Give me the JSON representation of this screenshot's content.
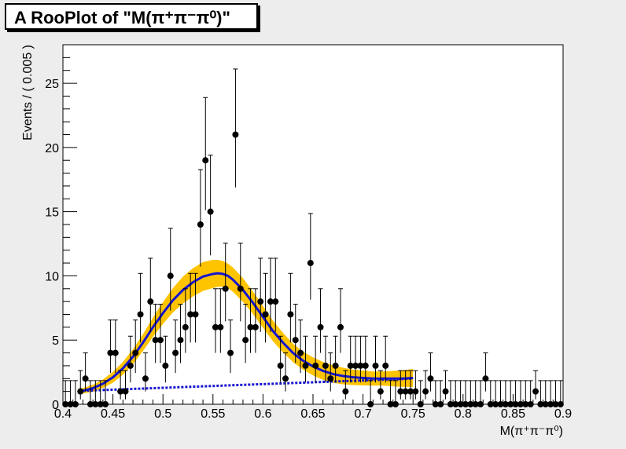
{
  "title": "A RooPlot of \"M(π⁺π⁻π⁰)\"",
  "chart_data": {
    "type": "scatter",
    "title": "A RooPlot of \"M(π⁺π⁻π⁰)\"",
    "xlabel": "M(π⁺π⁻π⁰)",
    "ylabel": "Events / ( 0.005 )",
    "xlim": [
      0.4,
      0.9
    ],
    "ylim": [
      0,
      28
    ],
    "x_ticks": [
      0.4,
      0.45,
      0.5,
      0.55,
      0.6,
      0.65,
      0.7,
      0.75,
      0.8,
      0.85,
      0.9
    ],
    "x_tick_labels": [
      "0.4",
      "0.45",
      "0.5",
      "0.55",
      "0.6",
      "0.65",
      "0.7",
      "0.75",
      "0.8",
      "0.85",
      "0.9"
    ],
    "y_ticks": [
      0,
      5,
      10,
      15,
      20,
      25
    ],
    "y_tick_labels": [
      "0",
      "5",
      "10",
      "15",
      "20",
      "25"
    ],
    "grid": false,
    "colors": {
      "data": "#000000",
      "fit": "#1515d0",
      "band": "#ffc400",
      "frame": "#000000"
    },
    "series": [
      {
        "kind": "data-points-with-poisson-errors",
        "x": [
          0.4025,
          0.4075,
          0.4125,
          0.4175,
          0.4225,
          0.4275,
          0.4325,
          0.4375,
          0.4425,
          0.4475,
          0.4525,
          0.4575,
          0.4625,
          0.4675,
          0.4725,
          0.4775,
          0.4825,
          0.4875,
          0.4925,
          0.4975,
          0.5025,
          0.5075,
          0.5125,
          0.5175,
          0.5225,
          0.5275,
          0.5325,
          0.5375,
          0.5425,
          0.5475,
          0.5525,
          0.5575,
          0.5625,
          0.5675,
          0.5725,
          0.5775,
          0.5825,
          0.5875,
          0.5925,
          0.5975,
          0.6025,
          0.6075,
          0.6125,
          0.6175,
          0.6225,
          0.6275,
          0.6325,
          0.6375,
          0.6425,
          0.6475,
          0.6525,
          0.6575,
          0.6625,
          0.6675,
          0.6725,
          0.6775,
          0.6825,
          0.6875,
          0.6925,
          0.6975,
          0.7025,
          0.7075,
          0.7125,
          0.7175,
          0.7225,
          0.7275,
          0.7325,
          0.7375,
          0.7425,
          0.7475,
          0.7525,
          0.7575,
          0.7625,
          0.7675,
          0.7725,
          0.7775,
          0.7825,
          0.7875,
          0.7925,
          0.7975,
          0.8025,
          0.8075,
          0.8125,
          0.8175,
          0.8225,
          0.8275,
          0.8325,
          0.8375,
          0.8425,
          0.8475,
          0.8525,
          0.8575,
          0.8625,
          0.8675,
          0.8725,
          0.8775,
          0.8825,
          0.8875,
          0.8925,
          0.8975
        ],
        "y": [
          0,
          0,
          0,
          1,
          2,
          0,
          0,
          0,
          0,
          4,
          4,
          1,
          1,
          3,
          4,
          7,
          2,
          8,
          5,
          5,
          3,
          10,
          4,
          5,
          6,
          7,
          7,
          14,
          19,
          15,
          6,
          6,
          9,
          4,
          21,
          9,
          5,
          6,
          6,
          8,
          7,
          8,
          8,
          3,
          2,
          7,
          5,
          4,
          3,
          11,
          3,
          6,
          3,
          2,
          3,
          6,
          1,
          3,
          3,
          3,
          3,
          0,
          3,
          1,
          3,
          0,
          0,
          1,
          1,
          1,
          1,
          0,
          1,
          2,
          0,
          0,
          1,
          0,
          0,
          0,
          0,
          0,
          0,
          0,
          2,
          0,
          0,
          0,
          0,
          0,
          0,
          0,
          0,
          0,
          1,
          0,
          0,
          0,
          0,
          0
        ]
      },
      {
        "kind": "fit-curve",
        "name": "",
        "x": [
          0.415,
          0.42,
          0.43,
          0.44,
          0.45,
          0.46,
          0.47,
          0.48,
          0.49,
          0.5,
          0.51,
          0.52,
          0.53,
          0.54,
          0.55,
          0.555,
          0.56,
          0.565,
          0.57,
          0.58,
          0.59,
          0.6,
          0.61,
          0.62,
          0.63,
          0.64,
          0.65,
          0.66,
          0.67,
          0.68,
          0.69,
          0.7,
          0.71,
          0.72,
          0.73,
          0.74,
          0.75
        ],
        "y": [
          1.0,
          1.05,
          1.25,
          1.6,
          2.1,
          2.8,
          3.7,
          4.8,
          6.0,
          7.1,
          8.1,
          8.9,
          9.5,
          9.95,
          10.15,
          10.2,
          10.15,
          10.0,
          9.7,
          8.9,
          7.9,
          6.8,
          5.7,
          4.8,
          4.0,
          3.4,
          2.95,
          2.6,
          2.35,
          2.2,
          2.1,
          2.05,
          2.0,
          2.0,
          2.0,
          2.0,
          2.05
        ]
      },
      {
        "kind": "error-band-half-width",
        "x": [
          0.415,
          0.42,
          0.43,
          0.44,
          0.45,
          0.46,
          0.47,
          0.48,
          0.49,
          0.5,
          0.51,
          0.52,
          0.53,
          0.54,
          0.55,
          0.555,
          0.56,
          0.565,
          0.57,
          0.58,
          0.59,
          0.6,
          0.61,
          0.62,
          0.63,
          0.64,
          0.65,
          0.66,
          0.67,
          0.68,
          0.69,
          0.7,
          0.71,
          0.72,
          0.73,
          0.74,
          0.75
        ],
        "y": [
          0.2,
          0.22,
          0.27,
          0.33,
          0.42,
          0.5,
          0.58,
          0.66,
          0.75,
          0.85,
          0.95,
          1.05,
          1.1,
          1.12,
          1.1,
          1.05,
          1.0,
          0.95,
          0.95,
          0.92,
          0.88,
          0.85,
          0.8,
          0.76,
          0.72,
          0.7,
          0.7,
          0.7,
          0.68,
          0.65,
          0.6,
          0.58,
          0.55,
          0.55,
          0.6,
          0.65,
          0.7
        ]
      },
      {
        "kind": "background-component",
        "name": "",
        "x": [
          0.42,
          0.75
        ],
        "y": [
          1.05,
          2.0
        ]
      }
    ]
  }
}
